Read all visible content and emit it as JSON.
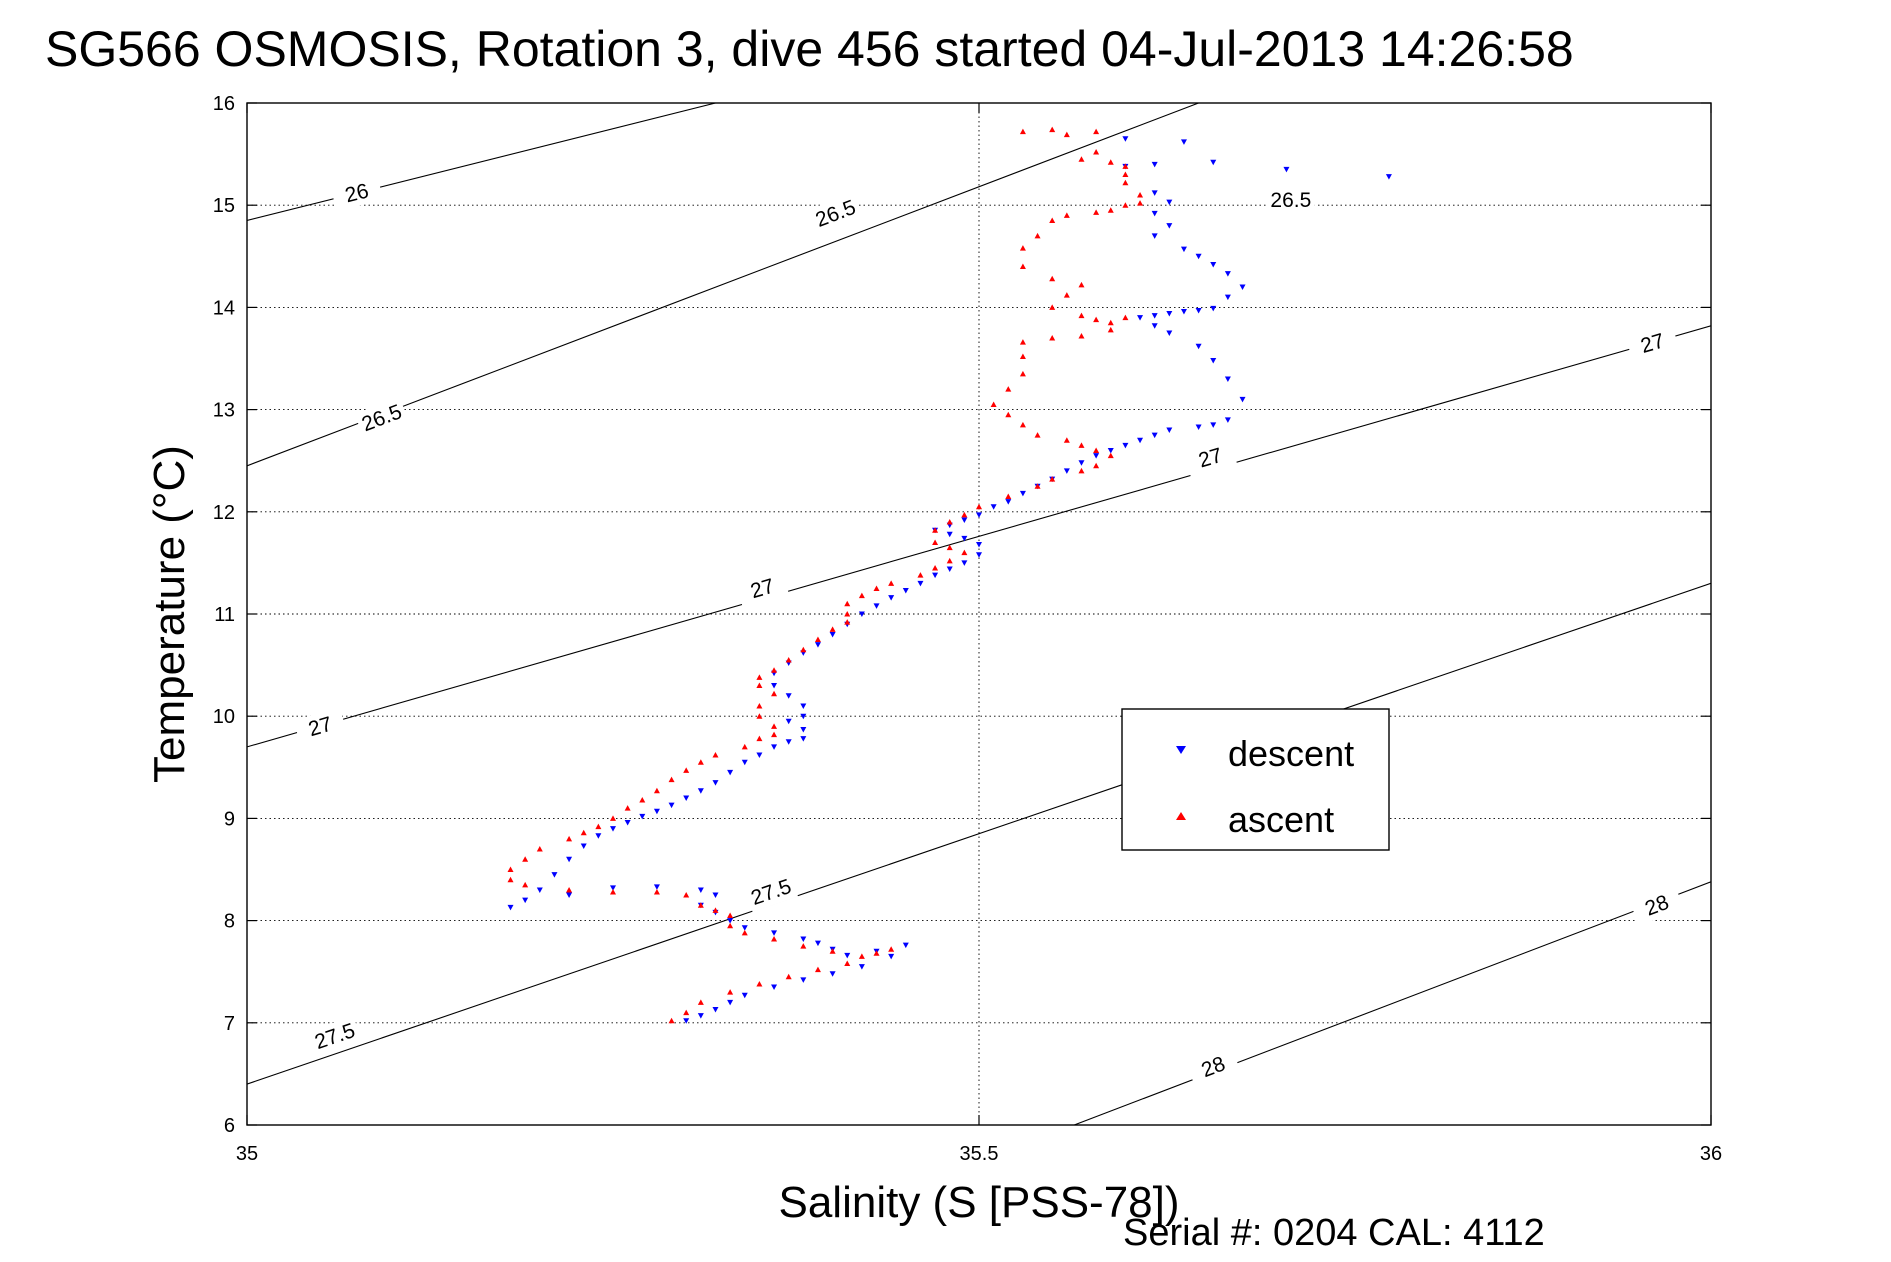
{
  "chart_data": {
    "type": "scatter",
    "title": "SG566 OSMOSIS, Rotation 3, dive 456 started 04-Jul-2013 14:26:58",
    "xlabel": "Salinity (S [PSS-78])",
    "ylabel": "Temperature (°C)",
    "xlim": [
      35,
      36
    ],
    "ylim": [
      6,
      16
    ],
    "x_ticks": [
      {
        "value": 35,
        "label": "35"
      },
      {
        "value": 35.5,
        "label": "35.5"
      },
      {
        "value": 36,
        "label": "36"
      }
    ],
    "y_ticks": [
      {
        "value": 6,
        "label": "6"
      },
      {
        "value": 7,
        "label": "7"
      },
      {
        "value": 8,
        "label": "8"
      },
      {
        "value": 9,
        "label": "9"
      },
      {
        "value": 10,
        "label": "10"
      },
      {
        "value": 11,
        "label": "11"
      },
      {
        "value": 12,
        "label": "12"
      },
      {
        "value": 13,
        "label": "13"
      },
      {
        "value": 14,
        "label": "14"
      },
      {
        "value": 15,
        "label": "15"
      },
      {
        "value": 16,
        "label": "16"
      }
    ],
    "grid": true,
    "legend_position": "right-middle",
    "serial_text": "Serial #: 0204  CAL: 4112",
    "contours": [
      {
        "level": "26",
        "points": [
          [
            35,
            14.85
          ],
          [
            35.32,
            16.0
          ]
        ],
        "labels": [
          {
            "text": "26",
            "x": 35.075,
            "y": 15.12
          }
        ]
      },
      {
        "level": "26.5",
        "points": [
          [
            35,
            12.45
          ],
          [
            35.65,
            16.0
          ]
        ],
        "labels": [
          {
            "text": "26.5",
            "x": 35.092,
            "y": 12.92
          },
          {
            "text": "26.5",
            "x": 35.402,
            "y": 14.92
          }
        ]
      },
      {
        "level": "26.5",
        "points": [
          [
            35.33,
            16.0
          ],
          [
            35.98,
            16.0
          ]
        ],
        "labels": [
          {
            "text": "26.5",
            "x": 35.713,
            "y": 15.05
          }
        ]
      },
      {
        "level": "27",
        "points": [
          [
            35,
            9.7
          ],
          [
            36,
            13.82
          ]
        ],
        "labels": [
          {
            "text": "27",
            "x": 35.05,
            "y": 9.9
          },
          {
            "text": "27",
            "x": 35.352,
            "y": 11.25
          },
          {
            "text": "27",
            "x": 35.658,
            "y": 12.53
          },
          {
            "text": "27",
            "x": 35.96,
            "y": 13.65
          }
        ]
      },
      {
        "level": "27.5",
        "points": [
          [
            35,
            6.4
          ],
          [
            36,
            11.3
          ]
        ],
        "labels": [
          {
            "text": "27.5",
            "x": 35.06,
            "y": 6.87
          },
          {
            "text": "27.5",
            "x": 35.358,
            "y": 8.28
          }
        ]
      },
      {
        "level": "28",
        "points": [
          [
            35.565,
            6.0
          ],
          [
            36,
            8.38
          ]
        ],
        "labels": [
          {
            "text": "28",
            "x": 35.66,
            "y": 6.57
          },
          {
            "text": "28",
            "x": 35.963,
            "y": 8.15
          }
        ]
      }
    ],
    "series": [
      {
        "name": "descent",
        "color": "#0000ff",
        "marker": "triangle-down",
        "points": [
          [
            35.78,
            15.28
          ],
          [
            35.71,
            15.35
          ],
          [
            35.66,
            15.42
          ],
          [
            35.62,
            15.4
          ],
          [
            35.6,
            15.38
          ],
          [
            35.64,
            15.62
          ],
          [
            35.6,
            15.65
          ],
          [
            35.62,
            15.12
          ],
          [
            35.63,
            15.03
          ],
          [
            35.62,
            14.92
          ],
          [
            35.63,
            14.8
          ],
          [
            35.62,
            14.7
          ],
          [
            35.64,
            14.57
          ],
          [
            35.65,
            14.5
          ],
          [
            35.66,
            14.42
          ],
          [
            35.67,
            14.33
          ],
          [
            35.68,
            14.2
          ],
          [
            35.67,
            14.1
          ],
          [
            35.66,
            13.99
          ],
          [
            35.65,
            13.97
          ],
          [
            35.64,
            13.96
          ],
          [
            35.63,
            13.94
          ],
          [
            35.62,
            13.92
          ],
          [
            35.61,
            13.9
          ],
          [
            35.62,
            13.82
          ],
          [
            35.63,
            13.75
          ],
          [
            35.65,
            13.62
          ],
          [
            35.66,
            13.48
          ],
          [
            35.67,
            13.3
          ],
          [
            35.68,
            13.1
          ],
          [
            35.67,
            12.9
          ],
          [
            35.66,
            12.85
          ],
          [
            35.65,
            12.83
          ],
          [
            35.63,
            12.8
          ],
          [
            35.62,
            12.75
          ],
          [
            35.61,
            12.7
          ],
          [
            35.6,
            12.65
          ],
          [
            35.59,
            12.6
          ],
          [
            35.58,
            12.55
          ],
          [
            35.57,
            12.48
          ],
          [
            35.56,
            12.4
          ],
          [
            35.55,
            12.32
          ],
          [
            35.54,
            12.25
          ],
          [
            35.53,
            12.18
          ],
          [
            35.52,
            12.1
          ],
          [
            35.51,
            12.05
          ],
          [
            35.5,
            11.97
          ],
          [
            35.49,
            11.92
          ],
          [
            35.48,
            11.87
          ],
          [
            35.47,
            11.82
          ],
          [
            35.48,
            11.78
          ],
          [
            35.49,
            11.74
          ],
          [
            35.5,
            11.68
          ],
          [
            35.5,
            11.58
          ],
          [
            35.49,
            11.5
          ],
          [
            35.48,
            11.44
          ],
          [
            35.47,
            11.38
          ],
          [
            35.46,
            11.3
          ],
          [
            35.45,
            11.23
          ],
          [
            35.44,
            11.16
          ],
          [
            35.43,
            11.08
          ],
          [
            35.42,
            11.0
          ],
          [
            35.41,
            10.9
          ],
          [
            35.4,
            10.8
          ],
          [
            35.39,
            10.7
          ],
          [
            35.38,
            10.62
          ],
          [
            35.37,
            10.52
          ],
          [
            35.36,
            10.42
          ],
          [
            35.36,
            10.3
          ],
          [
            35.37,
            10.2
          ],
          [
            35.38,
            10.1
          ],
          [
            35.38,
            10.0
          ],
          [
            35.37,
            9.95
          ],
          [
            35.38,
            9.87
          ],
          [
            35.38,
            9.78
          ],
          [
            35.37,
            9.75
          ],
          [
            35.36,
            9.7
          ],
          [
            35.35,
            9.62
          ],
          [
            35.34,
            9.55
          ],
          [
            35.33,
            9.45
          ],
          [
            35.32,
            9.35
          ],
          [
            35.31,
            9.27
          ],
          [
            35.3,
            9.2
          ],
          [
            35.29,
            9.13
          ],
          [
            35.28,
            9.07
          ],
          [
            35.27,
            9.02
          ],
          [
            35.26,
            8.96
          ],
          [
            35.25,
            8.9
          ],
          [
            35.24,
            8.83
          ],
          [
            35.23,
            8.73
          ],
          [
            35.22,
            8.6
          ],
          [
            35.21,
            8.45
          ],
          [
            35.2,
            8.3
          ],
          [
            35.19,
            8.2
          ],
          [
            35.18,
            8.13
          ],
          [
            35.22,
            8.25
          ],
          [
            35.25,
            8.32
          ],
          [
            35.28,
            8.33
          ],
          [
            35.31,
            8.3
          ],
          [
            35.32,
            8.25
          ],
          [
            35.31,
            8.15
          ],
          [
            35.32,
            8.08
          ],
          [
            35.33,
            8.0
          ],
          [
            35.34,
            7.93
          ],
          [
            35.36,
            7.88
          ],
          [
            35.38,
            7.82
          ],
          [
            35.39,
            7.78
          ],
          [
            35.4,
            7.72
          ],
          [
            35.41,
            7.66
          ],
          [
            35.43,
            7.7
          ],
          [
            35.45,
            7.76
          ],
          [
            35.44,
            7.65
          ],
          [
            35.42,
            7.55
          ],
          [
            35.4,
            7.48
          ],
          [
            35.38,
            7.42
          ],
          [
            35.36,
            7.35
          ],
          [
            35.34,
            7.27
          ],
          [
            35.33,
            7.2
          ],
          [
            35.32,
            7.13
          ],
          [
            35.31,
            7.07
          ],
          [
            35.3,
            7.02
          ]
        ]
      },
      {
        "name": "ascent",
        "color": "#ff0000",
        "marker": "triangle-up",
        "points": [
          [
            35.53,
            15.72
          ],
          [
            35.55,
            15.74
          ],
          [
            35.56,
            15.69
          ],
          [
            35.58,
            15.72
          ],
          [
            35.58,
            15.52
          ],
          [
            35.57,
            15.45
          ],
          [
            35.59,
            15.42
          ],
          [
            35.6,
            15.38
          ],
          [
            35.6,
            15.3
          ],
          [
            35.6,
            15.22
          ],
          [
            35.61,
            15.1
          ],
          [
            35.61,
            15.02
          ],
          [
            35.6,
            15.0
          ],
          [
            35.59,
            14.95
          ],
          [
            35.58,
            14.93
          ],
          [
            35.56,
            14.9
          ],
          [
            35.55,
            14.85
          ],
          [
            35.54,
            14.7
          ],
          [
            35.53,
            14.58
          ],
          [
            35.53,
            14.4
          ],
          [
            35.55,
            14.28
          ],
          [
            35.57,
            14.22
          ],
          [
            35.56,
            14.12
          ],
          [
            35.55,
            14.0
          ],
          [
            35.57,
            13.92
          ],
          [
            35.58,
            13.88
          ],
          [
            35.59,
            13.85
          ],
          [
            35.6,
            13.9
          ],
          [
            35.59,
            13.78
          ],
          [
            35.57,
            13.72
          ],
          [
            35.55,
            13.7
          ],
          [
            35.53,
            13.66
          ],
          [
            35.53,
            13.52
          ],
          [
            35.53,
            13.35
          ],
          [
            35.52,
            13.2
          ],
          [
            35.51,
            13.05
          ],
          [
            35.52,
            12.95
          ],
          [
            35.53,
            12.85
          ],
          [
            35.54,
            12.75
          ],
          [
            35.56,
            12.7
          ],
          [
            35.57,
            12.65
          ],
          [
            35.58,
            12.6
          ],
          [
            35.59,
            12.55
          ],
          [
            35.58,
            12.45
          ],
          [
            35.57,
            12.4
          ],
          [
            35.55,
            12.32
          ],
          [
            35.54,
            12.25
          ],
          [
            35.52,
            12.15
          ],
          [
            35.5,
            12.05
          ],
          [
            35.49,
            11.97
          ],
          [
            35.48,
            11.9
          ],
          [
            35.47,
            11.82
          ],
          [
            35.47,
            11.7
          ],
          [
            35.48,
            11.65
          ],
          [
            35.49,
            11.6
          ],
          [
            35.48,
            11.52
          ],
          [
            35.47,
            11.45
          ],
          [
            35.46,
            11.38
          ],
          [
            35.44,
            11.3
          ],
          [
            35.43,
            11.25
          ],
          [
            35.42,
            11.18
          ],
          [
            35.41,
            11.1
          ],
          [
            35.41,
            11.0
          ],
          [
            35.41,
            10.92
          ],
          [
            35.4,
            10.85
          ],
          [
            35.39,
            10.75
          ],
          [
            35.38,
            10.65
          ],
          [
            35.37,
            10.55
          ],
          [
            35.36,
            10.45
          ],
          [
            35.35,
            10.38
          ],
          [
            35.35,
            10.3
          ],
          [
            35.36,
            10.22
          ],
          [
            35.35,
            10.1
          ],
          [
            35.35,
            10.0
          ],
          [
            35.36,
            9.9
          ],
          [
            35.36,
            9.82
          ],
          [
            35.35,
            9.78
          ],
          [
            35.34,
            9.7
          ],
          [
            35.32,
            9.62
          ],
          [
            35.31,
            9.55
          ],
          [
            35.3,
            9.47
          ],
          [
            35.29,
            9.38
          ],
          [
            35.28,
            9.27
          ],
          [
            35.27,
            9.18
          ],
          [
            35.26,
            9.1
          ],
          [
            35.25,
            9.0
          ],
          [
            35.24,
            8.92
          ],
          [
            35.23,
            8.86
          ],
          [
            35.22,
            8.8
          ],
          [
            35.2,
            8.7
          ],
          [
            35.19,
            8.6
          ],
          [
            35.18,
            8.5
          ],
          [
            35.18,
            8.4
          ],
          [
            35.19,
            8.35
          ],
          [
            35.22,
            8.3
          ],
          [
            35.25,
            8.28
          ],
          [
            35.28,
            8.28
          ],
          [
            35.3,
            8.25
          ],
          [
            35.31,
            8.15
          ],
          [
            35.32,
            8.1
          ],
          [
            35.33,
            8.05
          ],
          [
            35.33,
            7.95
          ],
          [
            35.34,
            7.88
          ],
          [
            35.36,
            7.82
          ],
          [
            35.38,
            7.75
          ],
          [
            35.4,
            7.7
          ],
          [
            35.42,
            7.65
          ],
          [
            35.44,
            7.72
          ],
          [
            35.43,
            7.68
          ],
          [
            35.41,
            7.58
          ],
          [
            35.39,
            7.52
          ],
          [
            35.37,
            7.45
          ],
          [
            35.35,
            7.38
          ],
          [
            35.33,
            7.3
          ],
          [
            35.31,
            7.2
          ],
          [
            35.3,
            7.1
          ],
          [
            35.29,
            7.02
          ]
        ]
      }
    ]
  }
}
